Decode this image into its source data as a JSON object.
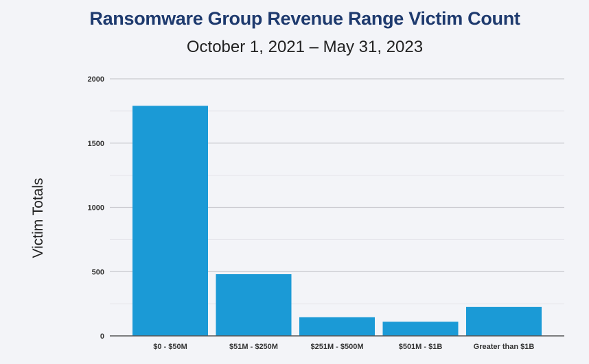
{
  "chart_data": {
    "type": "bar",
    "title": "Ransomware Group Revenue Range Victim Count",
    "subtitle": "October 1, 2021 – May 31, 2023",
    "xlabel": "",
    "ylabel": "Victim Totals",
    "categories": [
      "$0 - $50M",
      "$51M - $250M",
      "$251M - $500M",
      "$501M - $1B",
      "Greater than $1B"
    ],
    "values": [
      1790,
      480,
      145,
      110,
      225
    ],
    "ylim": [
      0,
      2000
    ],
    "yticks": [
      0,
      500,
      1000,
      1500,
      2000
    ],
    "grid": true,
    "bar_color": "#1b9ad6"
  }
}
